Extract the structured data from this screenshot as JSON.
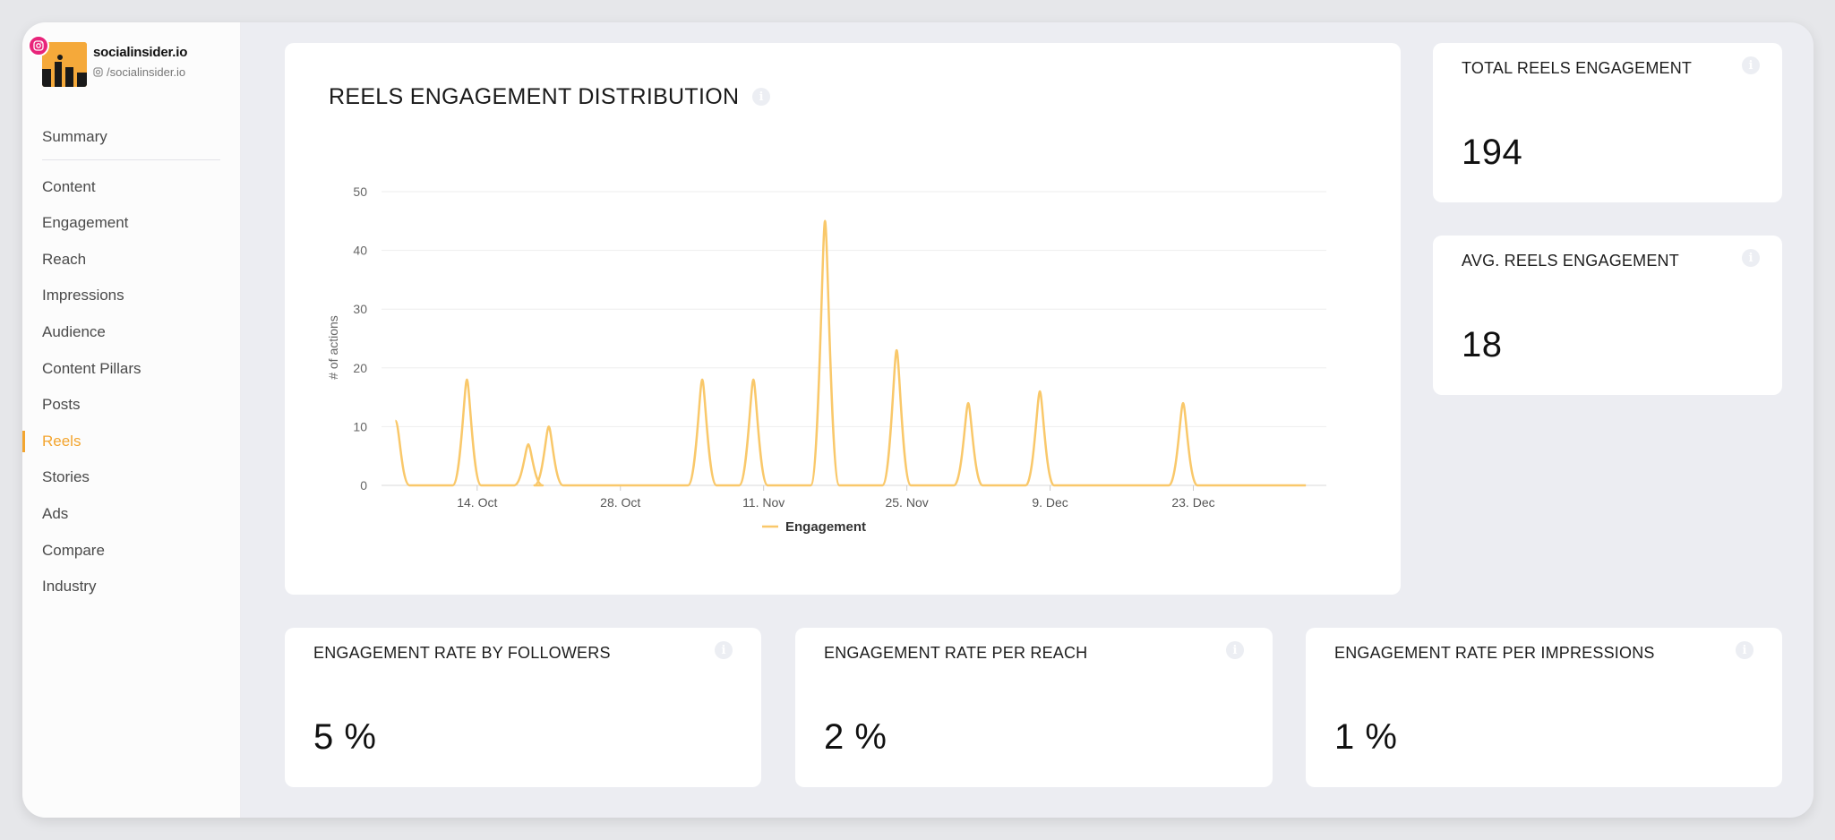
{
  "profile": {
    "name": "socialinsider.io",
    "handle": "/socialinsider.io"
  },
  "nav": {
    "summary": "Summary",
    "items": [
      "Content",
      "Engagement",
      "Reach",
      "Impressions",
      "Audience",
      "Content Pillars",
      "Posts",
      "Reels",
      "Stories",
      "Ads",
      "Compare",
      "Industry"
    ],
    "active": "Reels"
  },
  "main_chart": {
    "title": "REELS ENGAGEMENT DISTRIBUTION"
  },
  "metrics": {
    "total_reels_engagement": {
      "label": "TOTAL REELS ENGAGEMENT",
      "value": "194"
    },
    "avg_reels_engagement": {
      "label": "AVG. REELS ENGAGEMENT",
      "value": "18"
    },
    "er_by_followers": {
      "label": "ENGAGEMENT RATE BY FOLLOWERS",
      "value": "5 %"
    },
    "er_per_reach": {
      "label": "ENGAGEMENT RATE PER REACH",
      "value": "2 %"
    },
    "er_per_impressions": {
      "label": "ENGAGEMENT RATE PER IMPRESSIONS",
      "value": "1 %"
    }
  },
  "colors": {
    "accent": "#f3a52f",
    "series": "#f9c86a",
    "instagram": "#e8247a"
  },
  "chart_data": {
    "type": "line",
    "title": "REELS ENGAGEMENT DISTRIBUTION",
    "ylabel": "# of actions",
    "xlabel": "",
    "ylim": [
      0,
      50
    ],
    "yticks": [
      0,
      10,
      20,
      30,
      40,
      50
    ],
    "xlim": [
      "2023-10-05",
      "2024-01-05"
    ],
    "xticks": [
      {
        "date": "2023-10-14",
        "label": "14. Oct"
      },
      {
        "date": "2023-10-28",
        "label": "28. Oct"
      },
      {
        "date": "2023-11-11",
        "label": "11. Nov"
      },
      {
        "date": "2023-11-25",
        "label": "25. Nov"
      },
      {
        "date": "2023-12-09",
        "label": "9. Dec"
      },
      {
        "date": "2023-12-23",
        "label": "23. Dec"
      }
    ],
    "grid": true,
    "legend": "bottom-center",
    "series": [
      {
        "name": "Engagement",
        "points": [
          {
            "x": "2023-10-06",
            "y": 11
          },
          {
            "x": "2023-10-13",
            "y": 18
          },
          {
            "x": "2023-10-19",
            "y": 7
          },
          {
            "x": "2023-10-21",
            "y": 10
          },
          {
            "x": "2023-11-05",
            "y": 18
          },
          {
            "x": "2023-11-10",
            "y": 18
          },
          {
            "x": "2023-11-17",
            "y": 45
          },
          {
            "x": "2023-11-24",
            "y": 23
          },
          {
            "x": "2023-12-01",
            "y": 14
          },
          {
            "x": "2023-12-08",
            "y": 16
          },
          {
            "x": "2023-12-22",
            "y": 14
          }
        ]
      }
    ]
  }
}
